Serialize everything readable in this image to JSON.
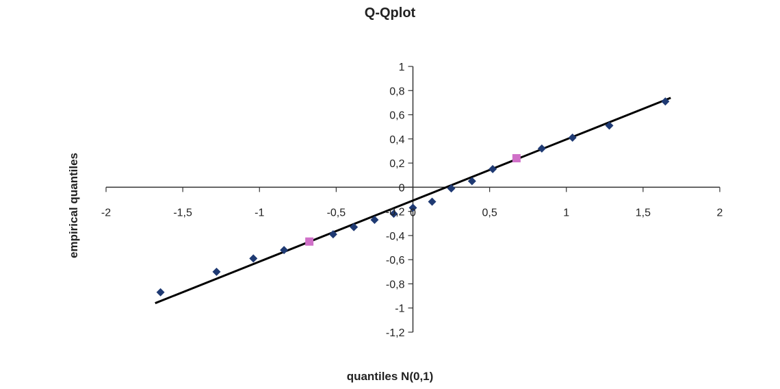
{
  "chart_data": {
    "type": "scatter",
    "title": "Q-Qplot",
    "xlabel": "quantiles N(0,1)",
    "ylabel": "empirical quantiles",
    "xlim": [
      -2,
      2
    ],
    "ylim": [
      -1.2,
      1
    ],
    "x_ticks": [
      "-2",
      "-1,5",
      "-1",
      "-0,5",
      "0",
      "0,5",
      "1",
      "1,5",
      "2"
    ],
    "x_tick_values": [
      -2,
      -1.5,
      -1,
      -0.5,
      0,
      0.5,
      1,
      1.5,
      2
    ],
    "y_ticks": [
      "1",
      "0,8",
      "0,6",
      "0,4",
      "0,2",
      "0",
      "-0,2",
      "-0,4",
      "-0,6",
      "-0,8",
      "-1",
      "-1,2"
    ],
    "y_tick_values": [
      1,
      0.8,
      0.6,
      0.4,
      0.2,
      0,
      -0.2,
      -0.4,
      -0.6,
      -0.8,
      -1,
      -1.2
    ],
    "grid": false,
    "legend": "none",
    "series": [
      {
        "marker": "diamond",
        "color": "#1f3a73",
        "points": [
          [
            -1.645,
            -0.87
          ],
          [
            -1.28,
            -0.7
          ],
          [
            -1.04,
            -0.59
          ],
          [
            -0.84,
            -0.52
          ],
          [
            -0.52,
            -0.39
          ],
          [
            -0.385,
            -0.33
          ],
          [
            -0.25,
            -0.27
          ],
          [
            -0.125,
            -0.22
          ],
          [
            0.0,
            -0.17
          ],
          [
            0.125,
            -0.12
          ],
          [
            0.25,
            -0.01
          ],
          [
            0.385,
            0.05
          ],
          [
            0.52,
            0.15
          ],
          [
            0.84,
            0.32
          ],
          [
            1.04,
            0.41
          ],
          [
            1.28,
            0.51
          ],
          [
            1.645,
            0.71
          ]
        ]
      },
      {
        "marker": "square",
        "color": "#d070c8",
        "points": [
          [
            -0.675,
            -0.45
          ],
          [
            0.675,
            0.24
          ]
        ]
      }
    ],
    "fit_line": {
      "color": "#000000",
      "x": [
        -1.68,
        1.68
      ],
      "y": [
        -0.96,
        0.74
      ]
    }
  }
}
